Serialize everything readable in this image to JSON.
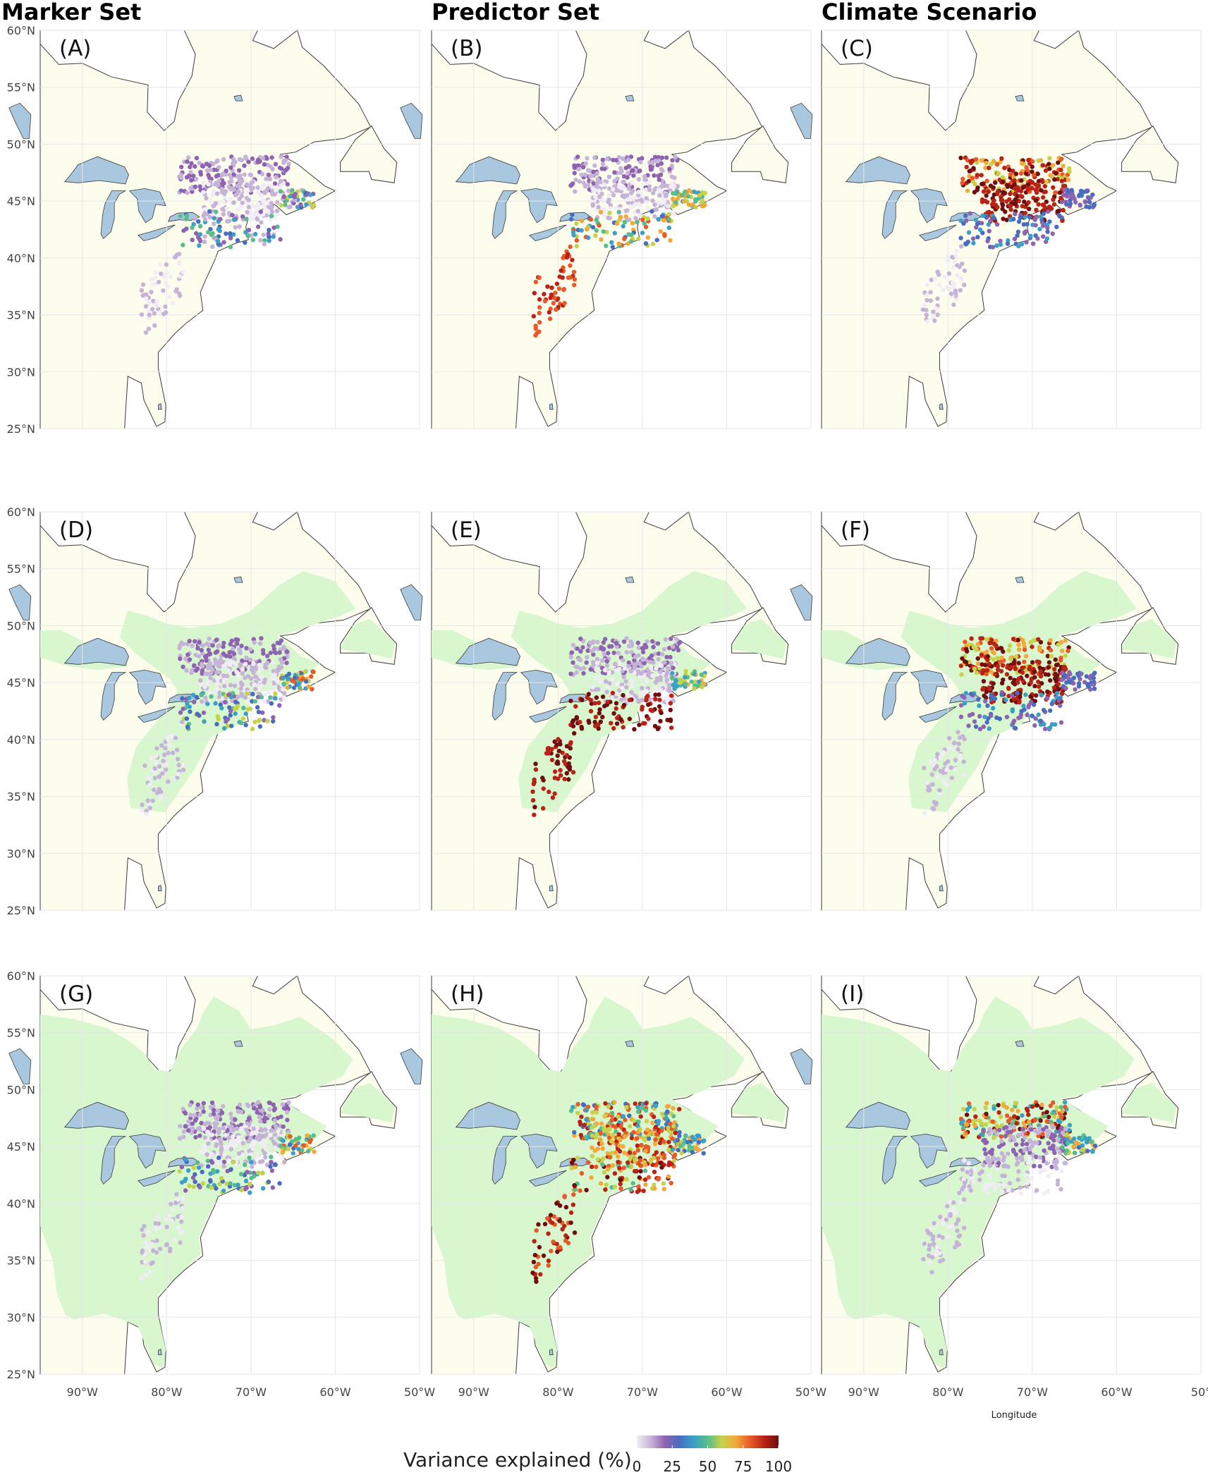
{
  "columns": [
    "Marker Set",
    "Predictor Set",
    "Climate Scenario"
  ],
  "panels": [
    {
      "label": "(A)",
      "extent_shown": false,
      "hotspot": "none"
    },
    {
      "label": "(B)",
      "extent_shown": false,
      "hotspot": "appalachian-red"
    },
    {
      "label": "(C)",
      "extent_shown": false,
      "hotspot": "northeast-darkred"
    },
    {
      "label": "(D)",
      "extent_shown": true,
      "hotspot": "coastal-mixed"
    },
    {
      "label": "(E)",
      "extent_shown": true,
      "hotspot": "appalachian-darkred"
    },
    {
      "label": "(F)",
      "extent_shown": true,
      "hotspot": "northeast-darkred"
    },
    {
      "label": "(G)",
      "extent_shown": true,
      "hotspot": "coastal-mixed"
    },
    {
      "label": "(H)",
      "extent_shown": true,
      "hotspot": "widespread-orange"
    },
    {
      "label": "(I)",
      "extent_shown": true,
      "hotspot": "northern-band"
    }
  ],
  "axes": {
    "lat_ticks": [
      "60°N",
      "55°N",
      "50°N",
      "45°N",
      "40°N",
      "35°N",
      "30°N",
      "25°N"
    ],
    "lon_ticks": [
      "90°W",
      "80°W",
      "70°W",
      "60°W",
      "50°W"
    ],
    "lon_ticks_last_panel": [
      "90°W",
      "80°W",
      "70°W",
      "60°W",
      "50°"
    ],
    "lat_range": [
      25,
      60
    ],
    "lon_range": [
      -95,
      -50
    ],
    "x_title": "Longitude"
  },
  "legend": {
    "title": "Variance explained (%)",
    "ticks": [
      "0",
      "25",
      "50",
      "75",
      "100"
    ],
    "colors": [
      "#f1ecf5",
      "#c5b3d8",
      "#8e63b0",
      "#4a6cc0",
      "#3aa0c6",
      "#58bd8a",
      "#c5d24a",
      "#f2a83a",
      "#e8592a",
      "#b92315",
      "#6e0e0e"
    ]
  },
  "colors": {
    "land": "#fdfdee",
    "lake": "#a9c8e0",
    "extent": "#d9f7cf",
    "coast": "#3a3a3a",
    "grid": "#e6e6e6"
  }
}
